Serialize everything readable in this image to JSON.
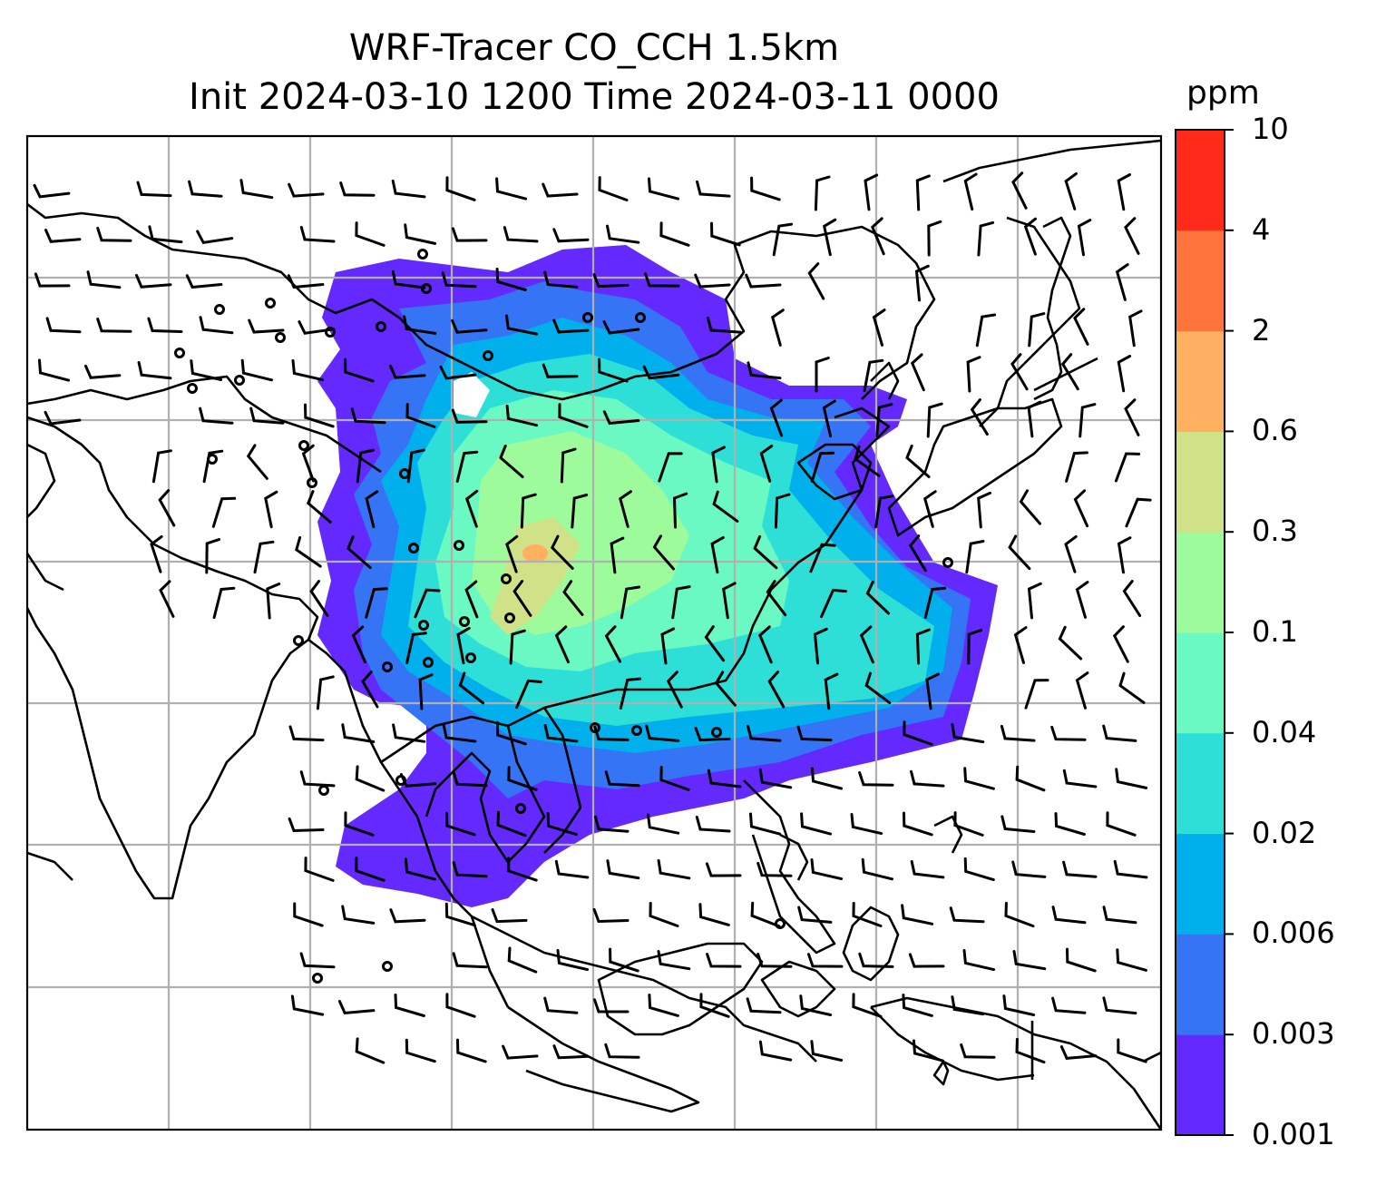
{
  "title": {
    "line1": "WRF-Tracer CO_CCH 1.5km",
    "line2": "Init 2024-03-10 1200 Time 2024-03-11 0000"
  },
  "colorbar": {
    "unit": "ppm",
    "levels": [
      "0.001",
      "0.003",
      "0.006",
      "0.02",
      "0.04",
      "0.1",
      "0.3",
      "0.6",
      "2",
      "4",
      "10"
    ],
    "colors": [
      "#6329ff",
      "#3574f5",
      "#00b0ec",
      "#2ddfd6",
      "#6bf9c3",
      "#9efb9b",
      "#d0e288",
      "#ffb060",
      "#ff743d",
      "#ff2a1a"
    ]
  },
  "colors": {
    "coastline": "#000000",
    "gridline": "#b0b0b0",
    "barb": "#000000"
  }
}
